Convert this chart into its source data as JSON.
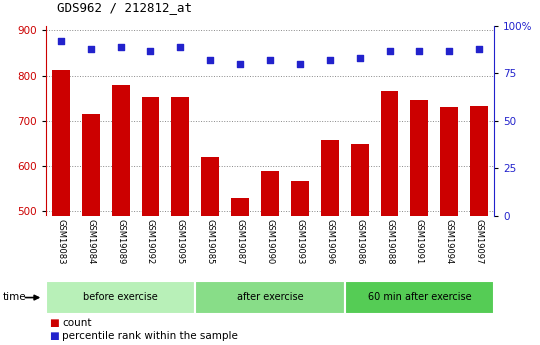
{
  "title": "GDS962 / 212812_at",
  "samples": [
    "GSM19083",
    "GSM19084",
    "GSM19089",
    "GSM19092",
    "GSM19095",
    "GSM19085",
    "GSM19087",
    "GSM19090",
    "GSM19093",
    "GSM19096",
    "GSM19086",
    "GSM19088",
    "GSM19091",
    "GSM19094",
    "GSM19097"
  ],
  "counts": [
    812,
    714,
    779,
    753,
    753,
    619,
    528,
    589,
    566,
    657,
    649,
    765,
    745,
    730,
    733
  ],
  "percentiles": [
    92,
    88,
    89,
    87,
    89,
    82,
    80,
    82,
    80,
    82,
    83,
    87,
    87,
    87,
    88
  ],
  "groups": [
    {
      "label": "before exercise",
      "start": 0,
      "end": 5,
      "color": "#b8f0b8"
    },
    {
      "label": "after exercise",
      "start": 5,
      "end": 10,
      "color": "#88dd88"
    },
    {
      "label": "60 min after exercise",
      "start": 10,
      "end": 15,
      "color": "#55cc55"
    }
  ],
  "bar_color": "#cc0000",
  "dot_color": "#2222cc",
  "ylim_left": [
    490,
    910
  ],
  "ylim_right": [
    0,
    100
  ],
  "yticks_left": [
    500,
    600,
    700,
    800,
    900
  ],
  "yticks_right": [
    0,
    25,
    50,
    75,
    100
  ],
  "grid_color": "#888888",
  "bar_width": 0.6,
  "tick_area_color": "#cccccc",
  "legend_count_color": "#cc0000",
  "legend_pct_color": "#2222cc",
  "bg_color": "#ffffff"
}
